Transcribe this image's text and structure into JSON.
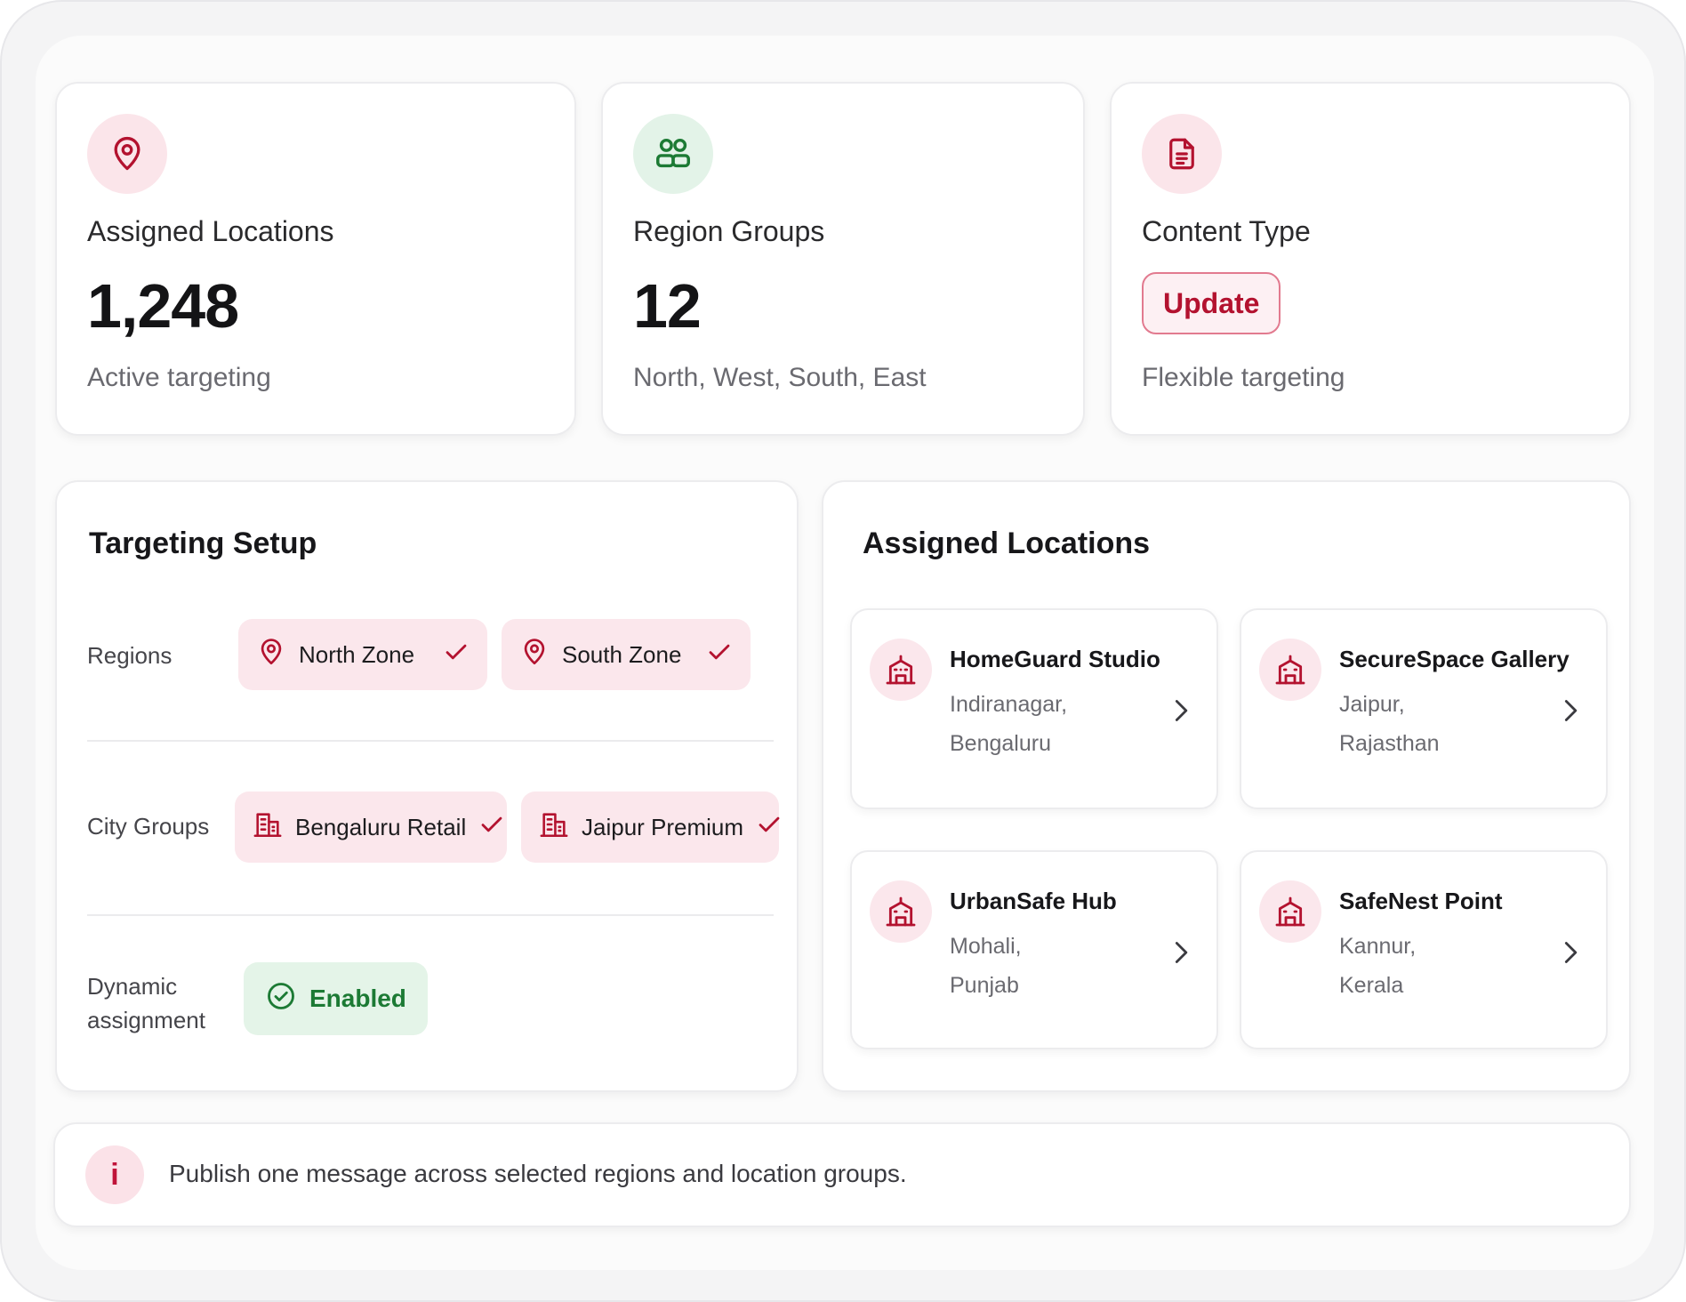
{
  "stats": {
    "locations": {
      "label": "Assigned Locations",
      "value": "1,248",
      "sub": "Active targeting",
      "icon": "map-pin-icon"
    },
    "regions": {
      "label": "Region Groups",
      "value": "12",
      "sub": "North, West, South, East",
      "icon": "users-group-icon"
    },
    "content": {
      "label": "Content Type",
      "button": "Update",
      "sub": "Flexible targeting",
      "icon": "document-icon"
    }
  },
  "targeting": {
    "title": "Targeting Setup",
    "regions_label": "Regions",
    "regions": [
      "North Zone",
      "South Zone"
    ],
    "city_groups_label": "City Groups",
    "city_groups": [
      "Bengaluru Retail",
      "Jaipur Premium"
    ],
    "dynamic_label_line1": "Dynamic",
    "dynamic_label_line2": "assignment",
    "dynamic_status": "Enabled"
  },
  "assigned": {
    "title": "Assigned Locations",
    "items": [
      {
        "name": "HomeGuard Studio",
        "line1": "Indiranagar,",
        "line2": "Bengaluru"
      },
      {
        "name": "SecureSpace Gallery",
        "line1": "Jaipur,",
        "line2": "Rajasthan"
      },
      {
        "name": "UrbanSafe Hub",
        "line1": "Mohali,",
        "line2": "Punjab"
      },
      {
        "name": "SafeNest Point",
        "line1": "Kannur,",
        "line2": "Kerala"
      }
    ]
  },
  "info": {
    "icon_glyph": "i",
    "text": "Publish one message across selected regions and location groups."
  },
  "colors": {
    "accent": "#b3122f",
    "accent_soft": "#fbe7ec",
    "success": "#1c7a34",
    "success_soft": "#e4f4e8"
  }
}
